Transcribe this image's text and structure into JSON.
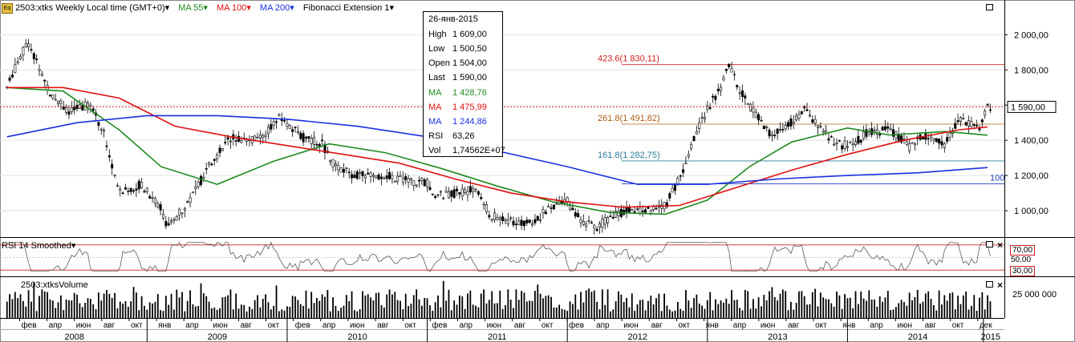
{
  "header": {
    "symbol": "2503:xtks Weekly Local time (GMT+0)",
    "ma55": "MA 55",
    "ma100": "MA 100",
    "ma200": "MA 200",
    "fib": "Fibonacci Extension 1",
    "colors": {
      "ma55": "#1e8a1e",
      "ma100": "#e01010",
      "ma200": "#1a2ee0",
      "fib423": "#d02020",
      "fib261": "#b06018",
      "fib161": "#2c7a9a",
      "fib100": "#2040c0"
    }
  },
  "tooltip": {
    "date": "26-янв-2015",
    "rows": [
      {
        "k": "High",
        "v": "1 609,00",
        "color": "#000000"
      },
      {
        "k": "Low",
        "v": "1 500,50",
        "color": "#000000"
      },
      {
        "k": "Open",
        "v": "1 504,00",
        "color": "#000000"
      },
      {
        "k": "Last",
        "v": "1 590,00",
        "color": "#000000"
      },
      {
        "k": "MA",
        "v": "1 428,76",
        "color": "#1e8a1e"
      },
      {
        "k": "MA",
        "v": "1 475,99",
        "color": "#e01010"
      },
      {
        "k": "MA",
        "v": "1 244,86",
        "color": "#1a2ee0"
      },
      {
        "k": "RSI",
        "v": "63,26",
        "color": "#000000"
      },
      {
        "k": "Vol",
        "v": "1,74562E+07",
        "color": "#000000"
      }
    ]
  },
  "rsi_panel": {
    "title": "RSI 14 Smoothed",
    "levels": [
      "70,00",
      "50,00",
      "30,00"
    ]
  },
  "volume_panel": {
    "title": "2503:xtksVolume",
    "axis_label": "25 000 000"
  },
  "chart_data": {
    "type": "line",
    "y_ticks": [
      "2 000,00",
      "1 800,00",
      "1 600,00",
      "1 400,00",
      "1 200,00",
      "1 000,00"
    ],
    "y_tick_values": [
      2000,
      1800,
      1600,
      1400,
      1200,
      1000
    ],
    "ylim": [
      850,
      2120
    ],
    "last_price_label": "1 590,00",
    "last_price": 1590,
    "fib_levels": [
      {
        "label": "423.6(1 830,11)",
        "value": 1830.11
      },
      {
        "label": "261.8(1 491,82)",
        "value": 1491.82
      },
      {
        "label": "161.8(1 282,75)",
        "value": 1282.75
      },
      {
        "label": "100",
        "value": 1153
      }
    ],
    "months": [
      "фев",
      "апр",
      "июн",
      "авг",
      "окт",
      "янв",
      "апр",
      "июн",
      "авг",
      "окт",
      "фев",
      "апр",
      "июн",
      "авг",
      "окт",
      "фев",
      "апр",
      "июн",
      "авг",
      "окт",
      "фев",
      "апр",
      "июн",
      "авг",
      "окт",
      "янв",
      "апр",
      "июн",
      "авг",
      "окт",
      "янв",
      "апр",
      "июн",
      "авг",
      "окт",
      "дек"
    ],
    "years": [
      "2008",
      "2009",
      "2010",
      "2011",
      "2012",
      "2013",
      "2014",
      "2015"
    ],
    "series": [
      {
        "name": "MA 55",
        "x": [
          2008.0,
          2008.4,
          2008.8,
          2009.1,
          2009.5,
          2009.9,
          2010.3,
          2010.7,
          2011.1,
          2011.5,
          2011.9,
          2012.3,
          2012.7,
          2013.0,
          2013.3,
          2013.6,
          2014.0,
          2014.3,
          2014.7,
          2015.0
        ],
        "values": [
          1700,
          1680,
          1460,
          1250,
          1150,
          1280,
          1380,
          1330,
          1240,
          1140,
          1050,
          990,
          980,
          1060,
          1250,
          1390,
          1470,
          1430,
          1450,
          1429
        ]
      },
      {
        "name": "MA 100",
        "x": [
          2008.0,
          2008.4,
          2008.8,
          2009.2,
          2009.6,
          2010.0,
          2010.4,
          2010.8,
          2011.2,
          2011.6,
          2012.0,
          2012.4,
          2012.8,
          2013.2,
          2013.6,
          2014.0,
          2014.4,
          2014.8,
          2015.0
        ],
        "values": [
          1700,
          1700,
          1640,
          1480,
          1420,
          1370,
          1320,
          1270,
          1180,
          1100,
          1050,
          1020,
          1030,
          1130,
          1230,
          1320,
          1400,
          1460,
          1476
        ]
      },
      {
        "name": "MA 200",
        "x": [
          2008.0,
          2008.5,
          2009.0,
          2009.5,
          2010.0,
          2010.5,
          2011.0,
          2011.5,
          2012.0,
          2012.5,
          2013.0,
          2013.5,
          2014.0,
          2014.5,
          2015.0
        ],
        "values": [
          1420,
          1500,
          1540,
          1540,
          1520,
          1480,
          1420,
          1340,
          1250,
          1150,
          1150,
          1180,
          1200,
          1215,
          1245
        ]
      }
    ]
  }
}
